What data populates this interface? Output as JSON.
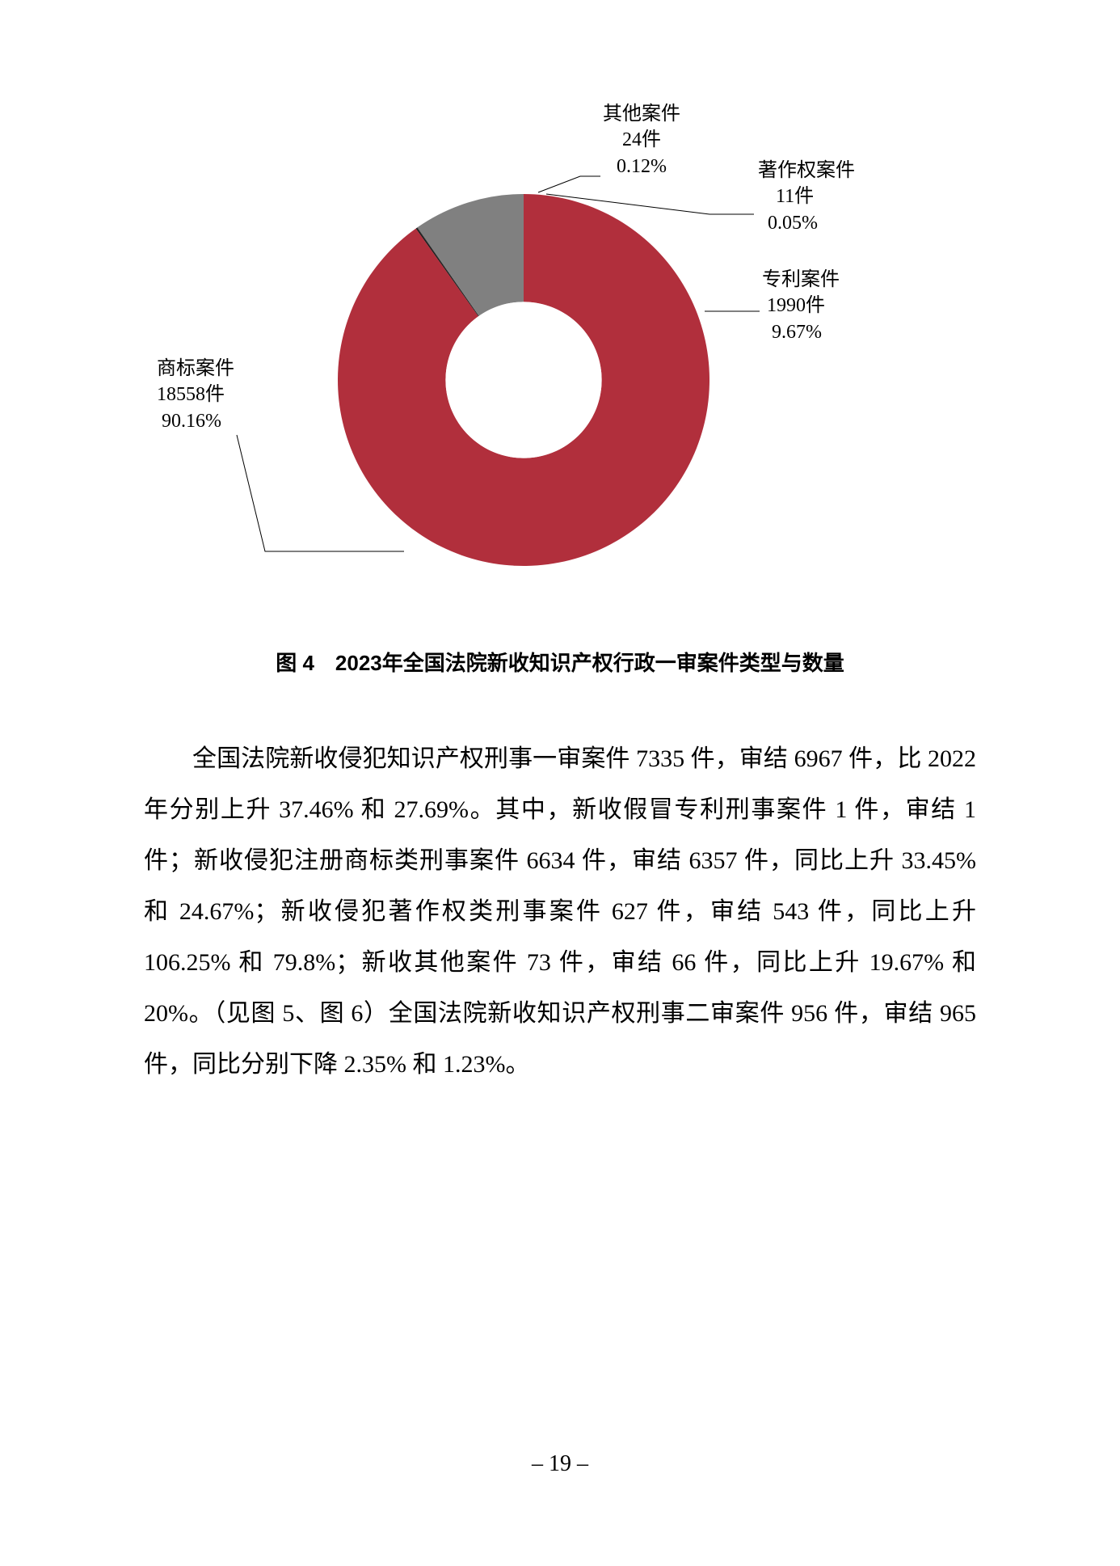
{
  "chart": {
    "type": "donut",
    "inner_radius_ratio": 0.42,
    "background_color": "#ffffff",
    "label_fontsize": 24,
    "label_color": "#000000",
    "slices": [
      {
        "name": "商标案件",
        "count_label": "18558件",
        "pct_label": "90.16%",
        "value": 90.16,
        "color": "#b12f3c"
      },
      {
        "name": "其他案件",
        "count_label": "24件",
        "pct_label": "0.12%",
        "value": 0.12,
        "color": "#1a1a1a"
      },
      {
        "name": "著作权案件",
        "count_label": "11件",
        "pct_label": "0.05%",
        "value": 0.05,
        "color": "#404040"
      },
      {
        "name": "专利案件",
        "count_label": "1990件",
        "pct_label": "9.67%",
        "value": 9.67,
        "color": "#808080"
      }
    ]
  },
  "caption": "图 4　2023年全国法院新收知识产权行政一审案件类型与数量",
  "body": "全国法院新收侵犯知识产权刑事一审案件 7335 件，审结 6967 件，比 2022 年分别上升 37.46% 和 27.69%。其中，新收假冒专利刑事案件 1 件，审结 1 件；新收侵犯注册商标类刑事案件 6634 件，审结 6357 件，同比上升 33.45% 和 24.67%；新收侵犯著作权类刑事案件 627 件，审结 543 件，同比上升 106.25% 和 79.8%；新收其他案件 73 件，审结 66 件，同比上升 19.67% 和 20%。（见图 5、图 6）全国法院新收知识产权刑事二审案件 956 件，审结 965 件，同比分别下降 2.35% 和 1.23%。",
  "page_number": "– 19 –"
}
